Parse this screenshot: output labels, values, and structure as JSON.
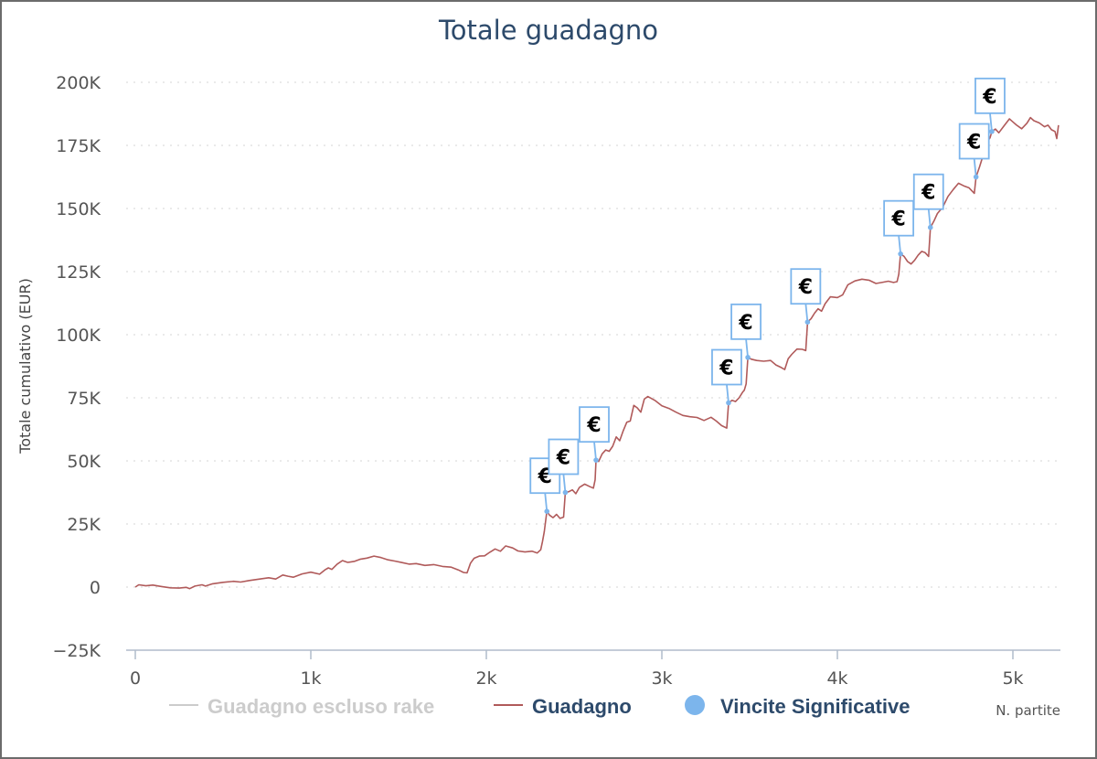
{
  "chart_data": {
    "type": "line",
    "title": "Totale guadagno",
    "xlabel": "N. partite",
    "ylabel": "Totale cumulativo (EUR)",
    "xlim": [
      -60,
      5300
    ],
    "ylim": [
      -25000,
      200000
    ],
    "grid": true,
    "legend_placement": "bottom",
    "x_ticks": [
      {
        "value": 0,
        "label": "0"
      },
      {
        "value": 1000,
        "label": "1k"
      },
      {
        "value": 2000,
        "label": "2k"
      },
      {
        "value": 3000,
        "label": "3k"
      },
      {
        "value": 4000,
        "label": "4k"
      },
      {
        "value": 5000,
        "label": "5k"
      }
    ],
    "y_ticks": [
      {
        "value": -25000,
        "label": "−25K"
      },
      {
        "value": 0,
        "label": "0"
      },
      {
        "value": 25000,
        "label": "25K"
      },
      {
        "value": 50000,
        "label": "50K"
      },
      {
        "value": 75000,
        "label": "75K"
      },
      {
        "value": 100000,
        "label": "100K"
      },
      {
        "value": 125000,
        "label": "125K"
      },
      {
        "value": 150000,
        "label": "150K"
      },
      {
        "value": 175000,
        "label": "175K"
      },
      {
        "value": 200000,
        "label": "200K"
      }
    ],
    "series": [
      {
        "name": "Guadagno",
        "color": "#b05a5a",
        "points": [
          [
            0,
            0
          ],
          [
            20,
            900
          ],
          [
            60,
            500
          ],
          [
            100,
            800
          ],
          [
            150,
            200
          ],
          [
            200,
            -300
          ],
          [
            250,
            -400
          ],
          [
            290,
            -100
          ],
          [
            310,
            -600
          ],
          [
            340,
            400
          ],
          [
            380,
            900
          ],
          [
            400,
            400
          ],
          [
            440,
            1300
          ],
          [
            500,
            1900
          ],
          [
            560,
            2300
          ],
          [
            600,
            2000
          ],
          [
            650,
            2600
          ],
          [
            700,
            3100
          ],
          [
            760,
            3700
          ],
          [
            800,
            3200
          ],
          [
            840,
            4800
          ],
          [
            870,
            4300
          ],
          [
            900,
            3900
          ],
          [
            950,
            5200
          ],
          [
            1000,
            5900
          ],
          [
            1050,
            5100
          ],
          [
            1080,
            6800
          ],
          [
            1100,
            7600
          ],
          [
            1120,
            7000
          ],
          [
            1150,
            9100
          ],
          [
            1180,
            10500
          ],
          [
            1210,
            9800
          ],
          [
            1250,
            10200
          ],
          [
            1280,
            11000
          ],
          [
            1320,
            11500
          ],
          [
            1360,
            12300
          ],
          [
            1400,
            11700
          ],
          [
            1440,
            10800
          ],
          [
            1480,
            10300
          ],
          [
            1520,
            9700
          ],
          [
            1560,
            9100
          ],
          [
            1600,
            9300
          ],
          [
            1650,
            8600
          ],
          [
            1700,
            8900
          ],
          [
            1750,
            8200
          ],
          [
            1800,
            7900
          ],
          [
            1840,
            6800
          ],
          [
            1870,
            5800
          ],
          [
            1890,
            5600
          ],
          [
            1910,
            9500
          ],
          [
            1930,
            11400
          ],
          [
            1960,
            12300
          ],
          [
            1990,
            12400
          ],
          [
            2020,
            13800
          ],
          [
            2050,
            15100
          ],
          [
            2080,
            14200
          ],
          [
            2110,
            16300
          ],
          [
            2150,
            15500
          ],
          [
            2180,
            14300
          ],
          [
            2220,
            13900
          ],
          [
            2260,
            14200
          ],
          [
            2290,
            13500
          ],
          [
            2310,
            14800
          ],
          [
            2320,
            18000
          ],
          [
            2330,
            22000
          ],
          [
            2345,
            30000
          ],
          [
            2360,
            28500
          ],
          [
            2380,
            27500
          ],
          [
            2400,
            28800
          ],
          [
            2420,
            27200
          ],
          [
            2440,
            27700
          ],
          [
            2450,
            37500
          ],
          [
            2470,
            37800
          ],
          [
            2490,
            38500
          ],
          [
            2510,
            37000
          ],
          [
            2530,
            39500
          ],
          [
            2560,
            40800
          ],
          [
            2590,
            39800
          ],
          [
            2610,
            39200
          ],
          [
            2620,
            42500
          ],
          [
            2625,
            50300
          ],
          [
            2640,
            49800
          ],
          [
            2660,
            52800
          ],
          [
            2680,
            54300
          ],
          [
            2700,
            53800
          ],
          [
            2720,
            55800
          ],
          [
            2740,
            59500
          ],
          [
            2760,
            58000
          ],
          [
            2780,
            62000
          ],
          [
            2800,
            65300
          ],
          [
            2820,
            65800
          ],
          [
            2840,
            72000
          ],
          [
            2860,
            71000
          ],
          [
            2880,
            69300
          ],
          [
            2900,
            74500
          ],
          [
            2920,
            75500
          ],
          [
            2960,
            74000
          ],
          [
            3000,
            71800
          ],
          [
            3040,
            70800
          ],
          [
            3080,
            69300
          ],
          [
            3120,
            68000
          ],
          [
            3160,
            67500
          ],
          [
            3200,
            67200
          ],
          [
            3240,
            66000
          ],
          [
            3280,
            67300
          ],
          [
            3310,
            65800
          ],
          [
            3340,
            64000
          ],
          [
            3370,
            63000
          ],
          [
            3380,
            73000
          ],
          [
            3400,
            74000
          ],
          [
            3420,
            73500
          ],
          [
            3440,
            75000
          ],
          [
            3460,
            77200
          ],
          [
            3470,
            78000
          ],
          [
            3480,
            80500
          ],
          [
            3490,
            91000
          ],
          [
            3510,
            90300
          ],
          [
            3540,
            89800
          ],
          [
            3580,
            89500
          ],
          [
            3620,
            89800
          ],
          [
            3650,
            88000
          ],
          [
            3680,
            87000
          ],
          [
            3700,
            86200
          ],
          [
            3720,
            90500
          ],
          [
            3740,
            92200
          ],
          [
            3770,
            94300
          ],
          [
            3800,
            94200
          ],
          [
            3820,
            93700
          ],
          [
            3830,
            105000
          ],
          [
            3850,
            106300
          ],
          [
            3870,
            108500
          ],
          [
            3890,
            110300
          ],
          [
            3910,
            109300
          ],
          [
            3930,
            112300
          ],
          [
            3960,
            115000
          ],
          [
            4000,
            114700
          ],
          [
            4030,
            115800
          ],
          [
            4060,
            119800
          ],
          [
            4100,
            121300
          ],
          [
            4140,
            122000
          ],
          [
            4180,
            121600
          ],
          [
            4220,
            120300
          ],
          [
            4260,
            120800
          ],
          [
            4290,
            121200
          ],
          [
            4320,
            120700
          ],
          [
            4340,
            121000
          ],
          [
            4350,
            124000
          ],
          [
            4360,
            132000
          ],
          [
            4380,
            131000
          ],
          [
            4400,
            129000
          ],
          [
            4420,
            128000
          ],
          [
            4440,
            129500
          ],
          [
            4460,
            131500
          ],
          [
            4480,
            133000
          ],
          [
            4500,
            132500
          ],
          [
            4520,
            131000
          ],
          [
            4530,
            142500
          ],
          [
            4550,
            145000
          ],
          [
            4570,
            148000
          ],
          [
            4600,
            150500
          ],
          [
            4630,
            154800
          ],
          [
            4660,
            157500
          ],
          [
            4690,
            160000
          ],
          [
            4720,
            159000
          ],
          [
            4750,
            158200
          ],
          [
            4780,
            156000
          ],
          [
            4790,
            162500
          ],
          [
            4810,
            166500
          ],
          [
            4830,
            171000
          ],
          [
            4850,
            176000
          ],
          [
            4870,
            178000
          ],
          [
            4880,
            180500
          ],
          [
            4900,
            181500
          ],
          [
            4920,
            180000
          ],
          [
            4950,
            182800
          ],
          [
            4980,
            185500
          ],
          [
            5000,
            184300
          ],
          [
            5020,
            183100
          ],
          [
            5050,
            181600
          ],
          [
            5080,
            183800
          ],
          [
            5100,
            186000
          ],
          [
            5120,
            184800
          ],
          [
            5150,
            183900
          ],
          [
            5180,
            182400
          ],
          [
            5200,
            183000
          ],
          [
            5220,
            181200
          ],
          [
            5240,
            180500
          ],
          [
            5250,
            177700
          ],
          [
            5260,
            183000
          ]
        ]
      },
      {
        "name": "Guadagno escluso rake",
        "color": "#cccccc",
        "hidden": true,
        "points": []
      }
    ],
    "significant_wins": {
      "name": "Vincite Significative",
      "color": "#7cb5ec",
      "marker_label": "€",
      "points": [
        [
          2345,
          30000
        ],
        [
          2450,
          37500
        ],
        [
          2625,
          50300
        ],
        [
          3380,
          73000
        ],
        [
          3490,
          91000
        ],
        [
          3830,
          105000
        ],
        [
          4360,
          132000
        ],
        [
          4530,
          142500
        ],
        [
          4790,
          162500
        ],
        [
          4880,
          180500
        ]
      ]
    },
    "legend": [
      {
        "label": "Guadagno escluso rake",
        "color": "#cccccc",
        "text_color": "#cccccc"
      },
      {
        "label": "Guadagno",
        "color": "#b05a5a",
        "text_color": "#2d4a6b"
      },
      {
        "label": "Vincite Significative",
        "color": "#7cb5ec",
        "text_color": "#2d4a6b"
      }
    ]
  }
}
